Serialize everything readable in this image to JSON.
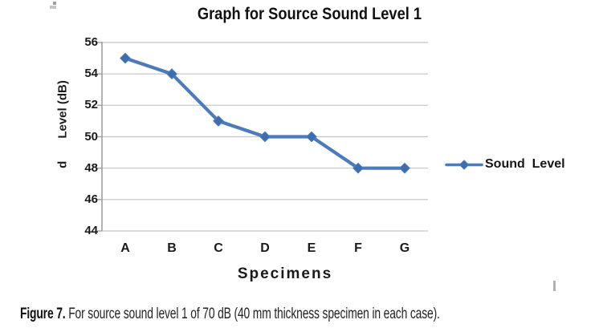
{
  "chart_data": {
    "type": "line",
    "title": "Graph for Source Sound Level 1",
    "categories": [
      "A",
      "B",
      "C",
      "D",
      "E",
      "F",
      "G"
    ],
    "series": [
      {
        "name": "Sound  Level",
        "values": [
          55,
          54,
          51,
          50,
          50,
          48,
          48
        ]
      }
    ],
    "xlabel": "Specimens",
    "ylabel_parts": [
      "d",
      "Level (dB)"
    ],
    "ylim": [
      44,
      56
    ],
    "ytick_step": 2,
    "yticks": [
      56,
      54,
      52,
      50,
      48,
      46,
      44
    ],
    "grid": "horizontal",
    "legend_position": "right",
    "colors": {
      "series_line": "#4b7bbb",
      "marker_fill": "#3e6dad",
      "grid_line": "#c3c3c3",
      "axis_line": "#a0a0a0",
      "text": "#1a1a1a"
    }
  },
  "legend": {
    "label": "Sound  Level"
  },
  "caption": {
    "prefix": "Figure 7.",
    "body": " For source sound level 1 of 70 dB (40 mm thickness specimen in each case)."
  }
}
